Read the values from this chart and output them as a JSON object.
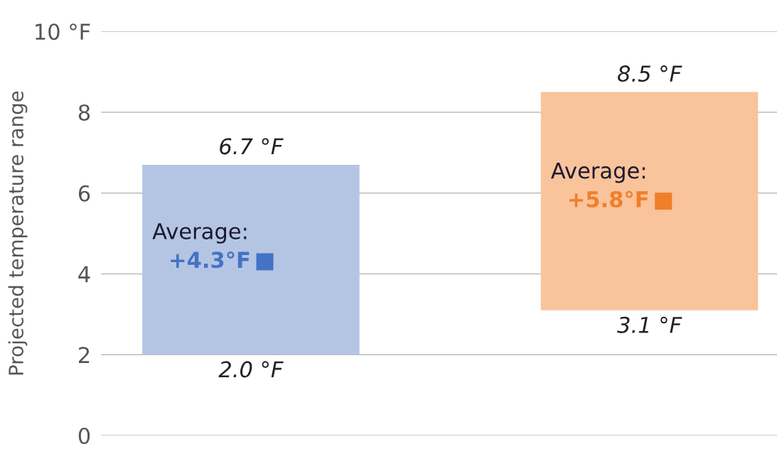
{
  "chart_data": {
    "type": "bar",
    "ylabel": "Projected temperature range",
    "categories": [
      null,
      null
    ],
    "series": [
      {
        "values": [
          4.7,
          5.4
        ],
        "base": [
          2.0,
          3.1
        ],
        "colors": [
          "#b4c5e4",
          "#f9c39b"
        ]
      },
      {
        "type": "scatter",
        "values": [
          4.3,
          null
        ],
        "color": "#4472c4",
        "value_labels": [
          "+4.3°F",
          null
        ]
      },
      {
        "type": "scatter",
        "values": [
          null,
          5.8
        ],
        "color": "#f07f2a",
        "value_labels": [
          null,
          "+5.8°F"
        ]
      }
    ],
    "marker": "square",
    "annotations": [
      {
        "text": "6.7 °F",
        "y": 6.7
      },
      {
        "text": "2.0 °F",
        "y": 2.0
      },
      {
        "text": "8.5 °F",
        "y": 8.5
      },
      {
        "text": "3.1 °F",
        "y": 3.1
      },
      "Average:",
      "Average:"
    ],
    "ylim": [
      0,
      10
    ],
    "yticks": [
      0,
      2,
      4,
      6,
      8,
      {
        "value": 10,
        "label": "10 °F"
      }
    ],
    "grid": "y"
  }
}
